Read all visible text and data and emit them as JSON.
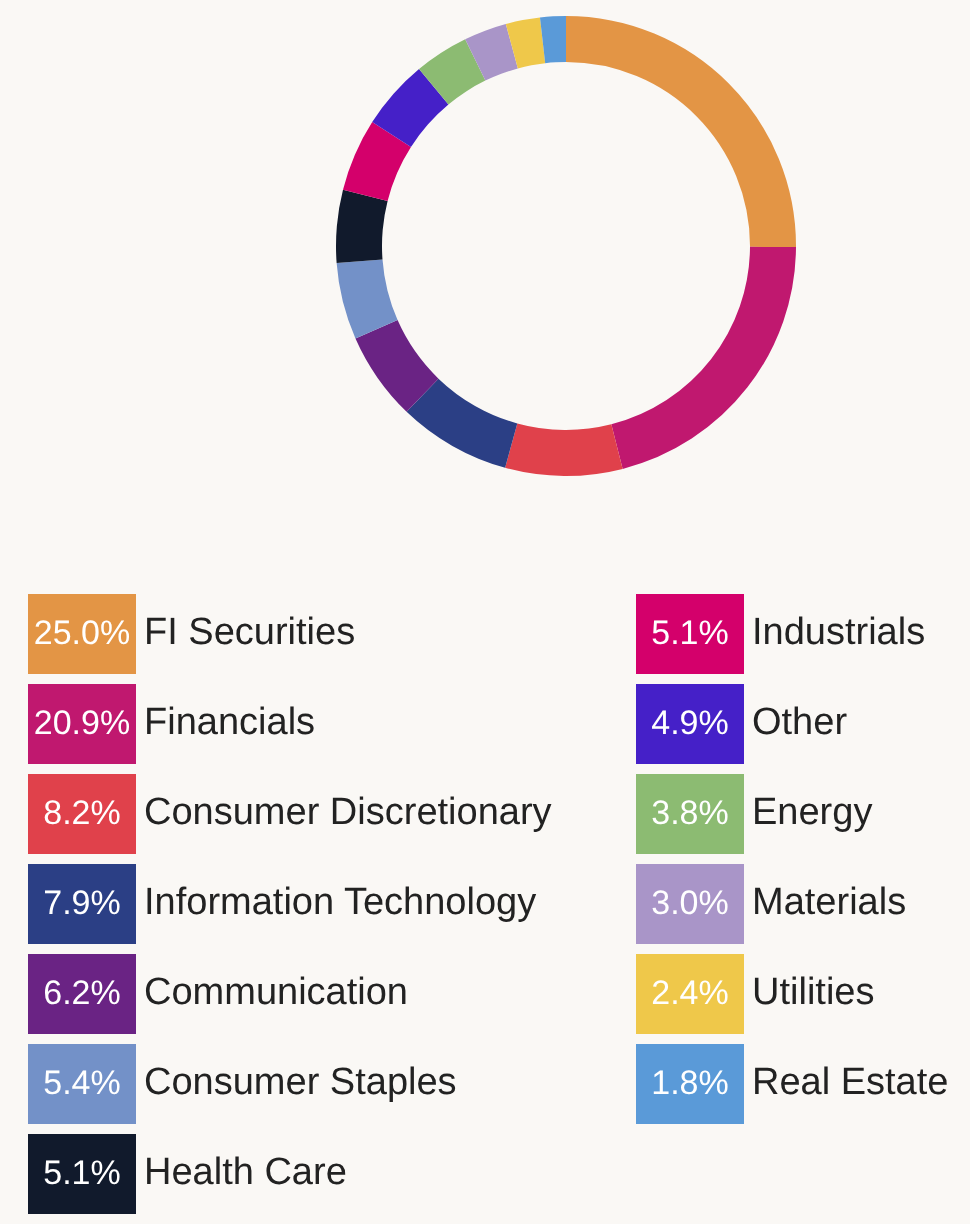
{
  "chart_data": {
    "type": "donut",
    "categories": [
      "FI Securities",
      "Financials",
      "Consumer Discretionary",
      "Information Technology",
      "Communication",
      "Consumer Staples",
      "Health Care",
      "Industrials",
      "Other",
      "Energy",
      "Materials",
      "Utilities",
      "Real Estate"
    ],
    "values": [
      25.0,
      20.9,
      8.2,
      7.9,
      6.2,
      5.4,
      5.1,
      5.1,
      4.9,
      3.8,
      3.0,
      2.4,
      1.8
    ],
    "value_labels": [
      "25.0%",
      "20.9%",
      "8.2%",
      "7.9%",
      "6.2%",
      "5.4%",
      "5.1%",
      "5.1%",
      "4.9%",
      "3.8%",
      "3.0%",
      "2.4%",
      "1.8%"
    ],
    "colors": [
      "#e39545",
      "#c0186f",
      "#e0414b",
      "#2b3f85",
      "#6a2384",
      "#7391c8",
      "#111a2c",
      "#d4006b",
      "#4520c8",
      "#8cbb72",
      "#a995c8",
      "#efc84a",
      "#5a9ad8"
    ],
    "legend": "bottom"
  }
}
